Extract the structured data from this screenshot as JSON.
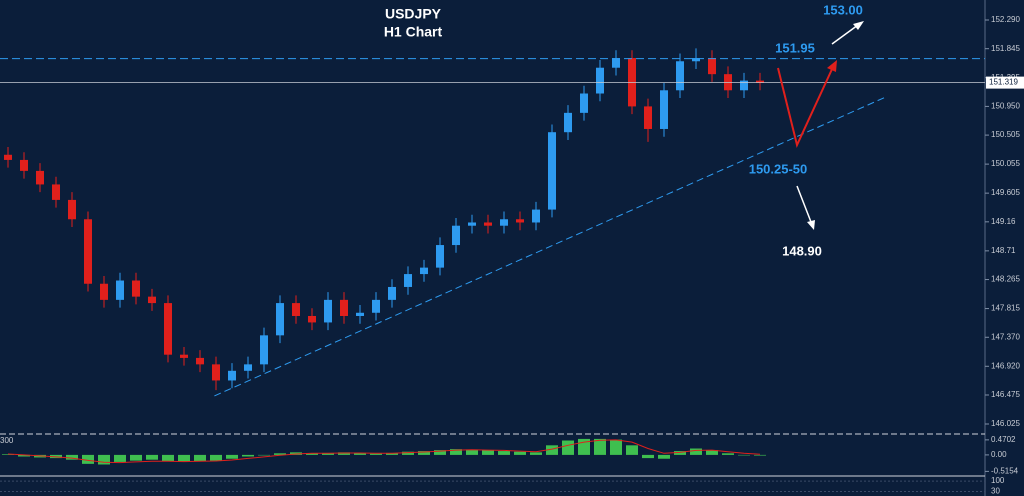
{
  "chart_data": {
    "type": "candlestick",
    "title": "USDJPY",
    "subtitle": "H1 Chart",
    "open": [
      150.2,
      150.12,
      149.95,
      149.74,
      149.5,
      149.2,
      148.2,
      147.95,
      148.25,
      148.0,
      147.9,
      147.1,
      147.05,
      146.95,
      146.7,
      146.85,
      146.95,
      147.4,
      147.9,
      147.7,
      147.6,
      147.95,
      147.7,
      147.75,
      147.95,
      148.15,
      148.35,
      148.45,
      148.8,
      149.1,
      149.15,
      149.1,
      149.2,
      149.15,
      149.35,
      150.55,
      150.85,
      151.15,
      151.55,
      151.7,
      150.95,
      150.6,
      151.2,
      151.65,
      151.7,
      151.45,
      151.2,
      151.35
    ],
    "high": [
      150.32,
      150.24,
      150.07,
      149.86,
      149.62,
      149.32,
      148.32,
      148.37,
      148.37,
      148.12,
      148.02,
      147.22,
      147.17,
      147.07,
      146.97,
      147.07,
      147.52,
      148.02,
      148.02,
      147.82,
      148.07,
      148.07,
      147.87,
      148.07,
      148.27,
      148.47,
      148.57,
      148.92,
      149.22,
      149.27,
      149.27,
      149.32,
      149.32,
      149.47,
      150.67,
      150.97,
      151.27,
      151.67,
      151.82,
      151.82,
      151.07,
      151.32,
      151.77,
      151.85,
      151.82,
      151.57,
      151.47,
      151.47
    ],
    "low": [
      150.0,
      149.83,
      149.62,
      149.38,
      149.08,
      148.08,
      147.83,
      147.83,
      147.88,
      147.78,
      146.98,
      146.93,
      146.83,
      146.55,
      146.58,
      146.73,
      146.83,
      147.28,
      147.58,
      147.48,
      147.48,
      147.58,
      147.58,
      147.63,
      147.83,
      148.03,
      148.23,
      148.33,
      148.68,
      148.98,
      148.98,
      148.98,
      149.03,
      149.03,
      149.23,
      150.43,
      150.73,
      151.03,
      151.43,
      150.83,
      150.4,
      150.48,
      151.08,
      151.53,
      151.33,
      151.08,
      151.08,
      151.2
    ],
    "close": [
      150.12,
      149.95,
      149.74,
      149.5,
      149.2,
      148.2,
      147.95,
      148.25,
      148.0,
      147.9,
      147.1,
      147.05,
      146.95,
      146.7,
      146.85,
      146.95,
      147.4,
      147.9,
      147.7,
      147.6,
      147.95,
      147.7,
      147.75,
      147.95,
      148.15,
      148.35,
      148.45,
      148.8,
      149.1,
      149.15,
      149.1,
      149.2,
      149.15,
      149.35,
      150.55,
      150.85,
      151.15,
      151.55,
      151.7,
      150.95,
      150.6,
      151.2,
      151.65,
      151.7,
      151.45,
      151.2,
      151.35,
      151.32
    ],
    "up_color": "#2e9bf0",
    "down_color": "#e0201c",
    "ylim": [
      145.87,
      152.6
    ],
    "yticks": [
      {
        "value": 152.29,
        "label": "152.290"
      },
      151.845,
      151.395,
      {
        "value": 150.95,
        "label": "150.950"
      },
      150.505,
      150.055,
      149.605,
      149.16,
      148.71,
      148.265,
      147.815,
      {
        "value": 147.37,
        "label": "147.370"
      },
      {
        "value": 146.92,
        "label": "146.920"
      },
      146.475,
      146.025
    ],
    "current_price": 151.319,
    "resistance_level": 151.69,
    "trendline": {
      "x": [
        12.9,
        54.9
      ],
      "y": [
        146.46,
        151.1
      ]
    },
    "annotations": [
      "153.00",
      "151.95",
      "150.25-50",
      "148.90"
    ],
    "indicator": {
      "label": "300",
      "histogram": [
        0.02,
        -0.05,
        -0.08,
        -0.1,
        -0.15,
        -0.28,
        -0.3,
        -0.22,
        -0.18,
        -0.15,
        -0.2,
        -0.22,
        -0.2,
        -0.18,
        -0.12,
        -0.05,
        0.0,
        0.05,
        0.08,
        0.05,
        0.06,
        0.08,
        0.05,
        0.04,
        0.06,
        0.1,
        0.12,
        0.15,
        0.18,
        0.17,
        0.14,
        0.12,
        0.1,
        0.08,
        0.3,
        0.45,
        0.5,
        0.5,
        0.48,
        0.3,
        -0.1,
        -0.12,
        0.12,
        0.2,
        0.15,
        0.05,
        0.0,
        -0.02
      ],
      "signal": [
        0.03,
        0.0,
        -0.03,
        -0.06,
        -0.1,
        -0.17,
        -0.23,
        -0.24,
        -0.22,
        -0.2,
        -0.2,
        -0.21,
        -0.2,
        -0.19,
        -0.16,
        -0.11,
        -0.06,
        -0.01,
        0.03,
        0.05,
        0.05,
        0.06,
        0.06,
        0.05,
        0.05,
        0.07,
        0.09,
        0.12,
        0.15,
        0.16,
        0.15,
        0.14,
        0.12,
        0.1,
        0.18,
        0.3,
        0.4,
        0.46,
        0.47,
        0.4,
        0.2,
        0.05,
        0.08,
        0.14,
        0.15,
        0.1,
        0.05,
        0.02
      ],
      "histogram_color": "#3fbf4f",
      "signal_color": "#e0201c",
      "ylim": [
        -0.66,
        0.56
      ],
      "yticks": [
        0.4702,
        {
          "value": 0,
          "label": "0.00"
        },
        -0.5154
      ]
    },
    "oscillator": {
      "ylim": [
        0,
        121
      ],
      "yticks": [
        100,
        30
      ]
    }
  }
}
